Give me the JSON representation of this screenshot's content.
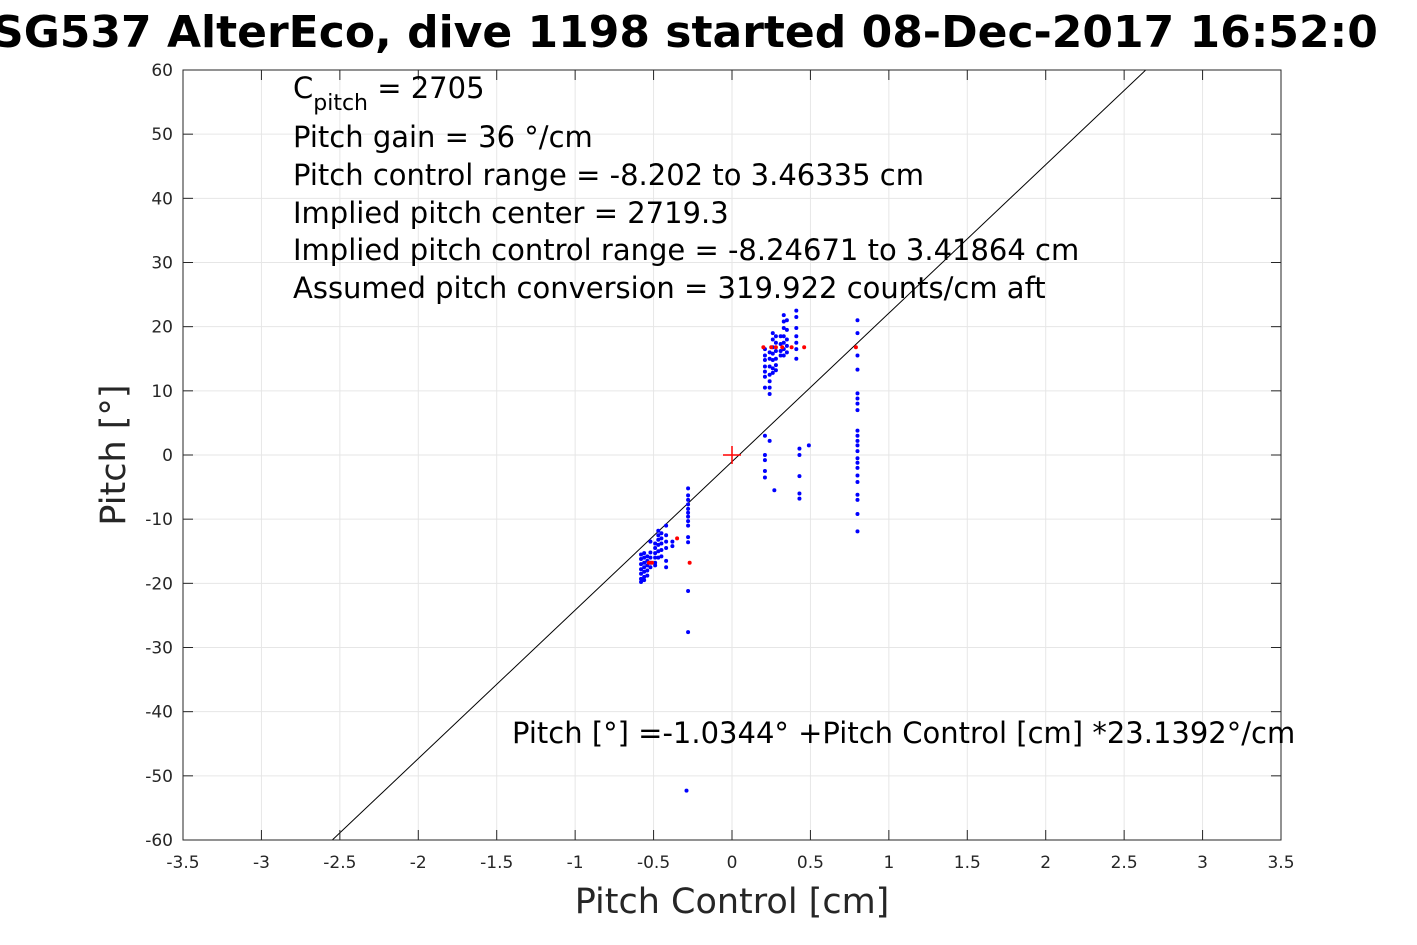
{
  "chart_data": {
    "type": "scatter",
    "title": "SG537 AlterEco, dive 1198 started 08-Dec-2017 16:52:0",
    "xlabel": "Pitch Control [cm]",
    "ylabel": "Pitch [°]",
    "xlim": [
      -3.5,
      3.5
    ],
    "ylim": [
      -60,
      60
    ],
    "x_ticks": [
      -3.5,
      -3,
      -2.5,
      -2,
      -1.5,
      -1,
      -0.5,
      0,
      0.5,
      1,
      1.5,
      2,
      2.5,
      3,
      3.5
    ],
    "y_ticks": [
      -60,
      -50,
      -40,
      -30,
      -20,
      -10,
      0,
      10,
      20,
      30,
      40,
      50,
      60
    ],
    "x_tick_labels": [
      "-3.5",
      "-3",
      "-2.5",
      "-2",
      "-1.5",
      "-1",
      "-0.5",
      "0",
      "0.5",
      "1",
      "1.5",
      "2",
      "2.5",
      "3",
      "3.5"
    ],
    "y_tick_labels": [
      "-60",
      "-50",
      "-40",
      "-30",
      "-20",
      "-10",
      "0",
      "10",
      "20",
      "30",
      "40",
      "50",
      "60"
    ],
    "grid": true,
    "colors": {
      "series_blue": "#0000ff",
      "series_red": "#ff0000",
      "fit_line": "#000000",
      "grid": "#e6e6e6"
    },
    "annotations": {
      "cpitch_main": "C",
      "cpitch_sub": "pitch",
      "cpitch_value": " = 2705",
      "gain": "Pitch gain = 36 °/cm",
      "control_range": "Pitch control range = -8.202 to 3.46335 cm",
      "implied_center": "Implied pitch center = 2719.3",
      "implied_range": "Implied pitch control range = -8.24671 to 3.41864 cm",
      "conversion": "Assumed pitch conversion = 319.922 counts/cm aft",
      "fit_equation": "Pitch [°] =-1.0344° +Pitch Control [cm] *23.1392°/cm"
    },
    "fit_line": {
      "intercept": -1.0344,
      "slope": 23.1392
    },
    "center_marker": {
      "x": 0,
      "y": 0
    },
    "series": [
      {
        "color": "blue",
        "points": [
          [
            -0.58,
            -15.5
          ],
          [
            -0.58,
            -16.2
          ],
          [
            -0.58,
            -17
          ],
          [
            -0.58,
            -17.8
          ],
          [
            -0.58,
            -18.5
          ],
          [
            -0.58,
            -19.3
          ],
          [
            -0.58,
            -19.8
          ],
          [
            -0.56,
            -15.3
          ],
          [
            -0.56,
            -16
          ],
          [
            -0.56,
            -16.8
          ],
          [
            -0.56,
            -17.5
          ],
          [
            -0.56,
            -18.2
          ],
          [
            -0.56,
            -19
          ],
          [
            -0.56,
            -19.5
          ],
          [
            -0.54,
            -15.8
          ],
          [
            -0.54,
            -16.5
          ],
          [
            -0.54,
            -17.2
          ],
          [
            -0.54,
            -18
          ],
          [
            -0.54,
            -18.8
          ],
          [
            -0.52,
            -13.5
          ],
          [
            -0.52,
            -15.2
          ],
          [
            -0.52,
            -16
          ],
          [
            -0.52,
            -16.8
          ],
          [
            -0.52,
            -17.5
          ],
          [
            -0.49,
            -13.8
          ],
          [
            -0.49,
            -14.5
          ],
          [
            -0.49,
            -15.3
          ],
          [
            -0.49,
            -16
          ],
          [
            -0.49,
            -16.8
          ],
          [
            -0.49,
            -17.2
          ],
          [
            -0.47,
            -11.8
          ],
          [
            -0.47,
            -12.5
          ],
          [
            -0.47,
            -13.2
          ],
          [
            -0.47,
            -14
          ],
          [
            -0.47,
            -15
          ],
          [
            -0.47,
            -16
          ],
          [
            -0.45,
            -12.2
          ],
          [
            -0.45,
            -13
          ],
          [
            -0.45,
            -13.8
          ],
          [
            -0.45,
            -14.8
          ],
          [
            -0.45,
            -15.8
          ],
          [
            -0.42,
            -11
          ],
          [
            -0.42,
            -12.5
          ],
          [
            -0.42,
            -13.5
          ],
          [
            -0.42,
            -14.5
          ],
          [
            -0.42,
            -16.5
          ],
          [
            -0.42,
            -17.5
          ],
          [
            -0.38,
            -13.5
          ],
          [
            -0.38,
            -14.2
          ],
          [
            -0.28,
            -5.2
          ],
          [
            -0.28,
            -6.3
          ],
          [
            -0.28,
            -7
          ],
          [
            -0.28,
            -7.7
          ],
          [
            -0.28,
            -8.4
          ],
          [
            -0.28,
            -9
          ],
          [
            -0.28,
            -9.6
          ],
          [
            -0.28,
            -10.3
          ],
          [
            -0.28,
            -11
          ],
          [
            -0.28,
            -12.8
          ],
          [
            -0.28,
            -13.6
          ],
          [
            -0.28,
            -21.2
          ],
          [
            -0.28,
            -27.6
          ],
          [
            -0.29,
            -52.3
          ],
          [
            0.21,
            16.5
          ],
          [
            0.21,
            15.5
          ],
          [
            0.21,
            14.8
          ],
          [
            0.21,
            13.8
          ],
          [
            0.21,
            13
          ],
          [
            0.21,
            12.2
          ],
          [
            0.21,
            10.5
          ],
          [
            0.24,
            16
          ],
          [
            0.24,
            15
          ],
          [
            0.24,
            13.8
          ],
          [
            0.24,
            12.5
          ],
          [
            0.24,
            11.5
          ],
          [
            0.24,
            10.5
          ],
          [
            0.24,
            9.5
          ],
          [
            0.26,
            19
          ],
          [
            0.26,
            18
          ],
          [
            0.26,
            16.8
          ],
          [
            0.26,
            15.8
          ],
          [
            0.26,
            14.8
          ],
          [
            0.26,
            13.5
          ],
          [
            0.26,
            12.8
          ],
          [
            0.28,
            18.5
          ],
          [
            0.28,
            17.5
          ],
          [
            0.28,
            16.2
          ],
          [
            0.28,
            15
          ],
          [
            0.28,
            14
          ],
          [
            0.28,
            13.2
          ],
          [
            0.31,
            18.5
          ],
          [
            0.31,
            17.3
          ],
          [
            0.31,
            16.2
          ],
          [
            0.31,
            15.5
          ],
          [
            0.33,
            21.8
          ],
          [
            0.33,
            20.8
          ],
          [
            0.33,
            19.8
          ],
          [
            0.33,
            18.5
          ],
          [
            0.33,
            17.5
          ],
          [
            0.33,
            16.5
          ],
          [
            0.33,
            15.5
          ],
          [
            0.35,
            21
          ],
          [
            0.35,
            19.5
          ],
          [
            0.35,
            18
          ],
          [
            0.35,
            17
          ],
          [
            0.35,
            16
          ],
          [
            0.41,
            22.5
          ],
          [
            0.41,
            21.5
          ],
          [
            0.41,
            19.8
          ],
          [
            0.41,
            18.5
          ],
          [
            0.41,
            17.5
          ],
          [
            0.41,
            16.5
          ],
          [
            0.41,
            15
          ],
          [
            0.21,
            3
          ],
          [
            0.21,
            0
          ],
          [
            0.21,
            -0.8
          ],
          [
            0.21,
            -2.5
          ],
          [
            0.21,
            -3.5
          ],
          [
            0.24,
            2.2
          ],
          [
            0.27,
            -5.5
          ],
          [
            0.43,
            1
          ],
          [
            0.43,
            0
          ],
          [
            0.43,
            -3.3
          ],
          [
            0.43,
            -6
          ],
          [
            0.43,
            -6.8
          ],
          [
            0.49,
            1.5
          ],
          [
            0.8,
            21
          ],
          [
            0.8,
            19
          ],
          [
            0.8,
            15.5
          ],
          [
            0.8,
            13.3
          ],
          [
            0.8,
            9.6
          ],
          [
            0.8,
            8.8
          ],
          [
            0.8,
            8
          ],
          [
            0.8,
            7
          ],
          [
            0.8,
            3.8
          ],
          [
            0.8,
            3
          ],
          [
            0.8,
            2.2
          ],
          [
            0.8,
            1.5
          ],
          [
            0.8,
            0.6
          ],
          [
            0.8,
            -0.5
          ],
          [
            0.8,
            -1.2
          ],
          [
            0.8,
            -2
          ],
          [
            0.8,
            -3.2
          ],
          [
            0.8,
            -4.2
          ],
          [
            0.8,
            -6.2
          ],
          [
            0.8,
            -7
          ],
          [
            0.8,
            -9.2
          ],
          [
            0.8,
            -11.9
          ]
        ]
      },
      {
        "color": "red",
        "points": [
          [
            -0.53,
            -16.8
          ],
          [
            -0.51,
            -16.8
          ],
          [
            -0.35,
            -13
          ],
          [
            -0.27,
            -16.8
          ],
          [
            0.2,
            16.8
          ],
          [
            0.25,
            16.8
          ],
          [
            0.28,
            16.8
          ],
          [
            0.32,
            16.8
          ],
          [
            0.38,
            16.8
          ],
          [
            0.46,
            16.8
          ],
          [
            0.79,
            16.8
          ]
        ]
      }
    ]
  }
}
